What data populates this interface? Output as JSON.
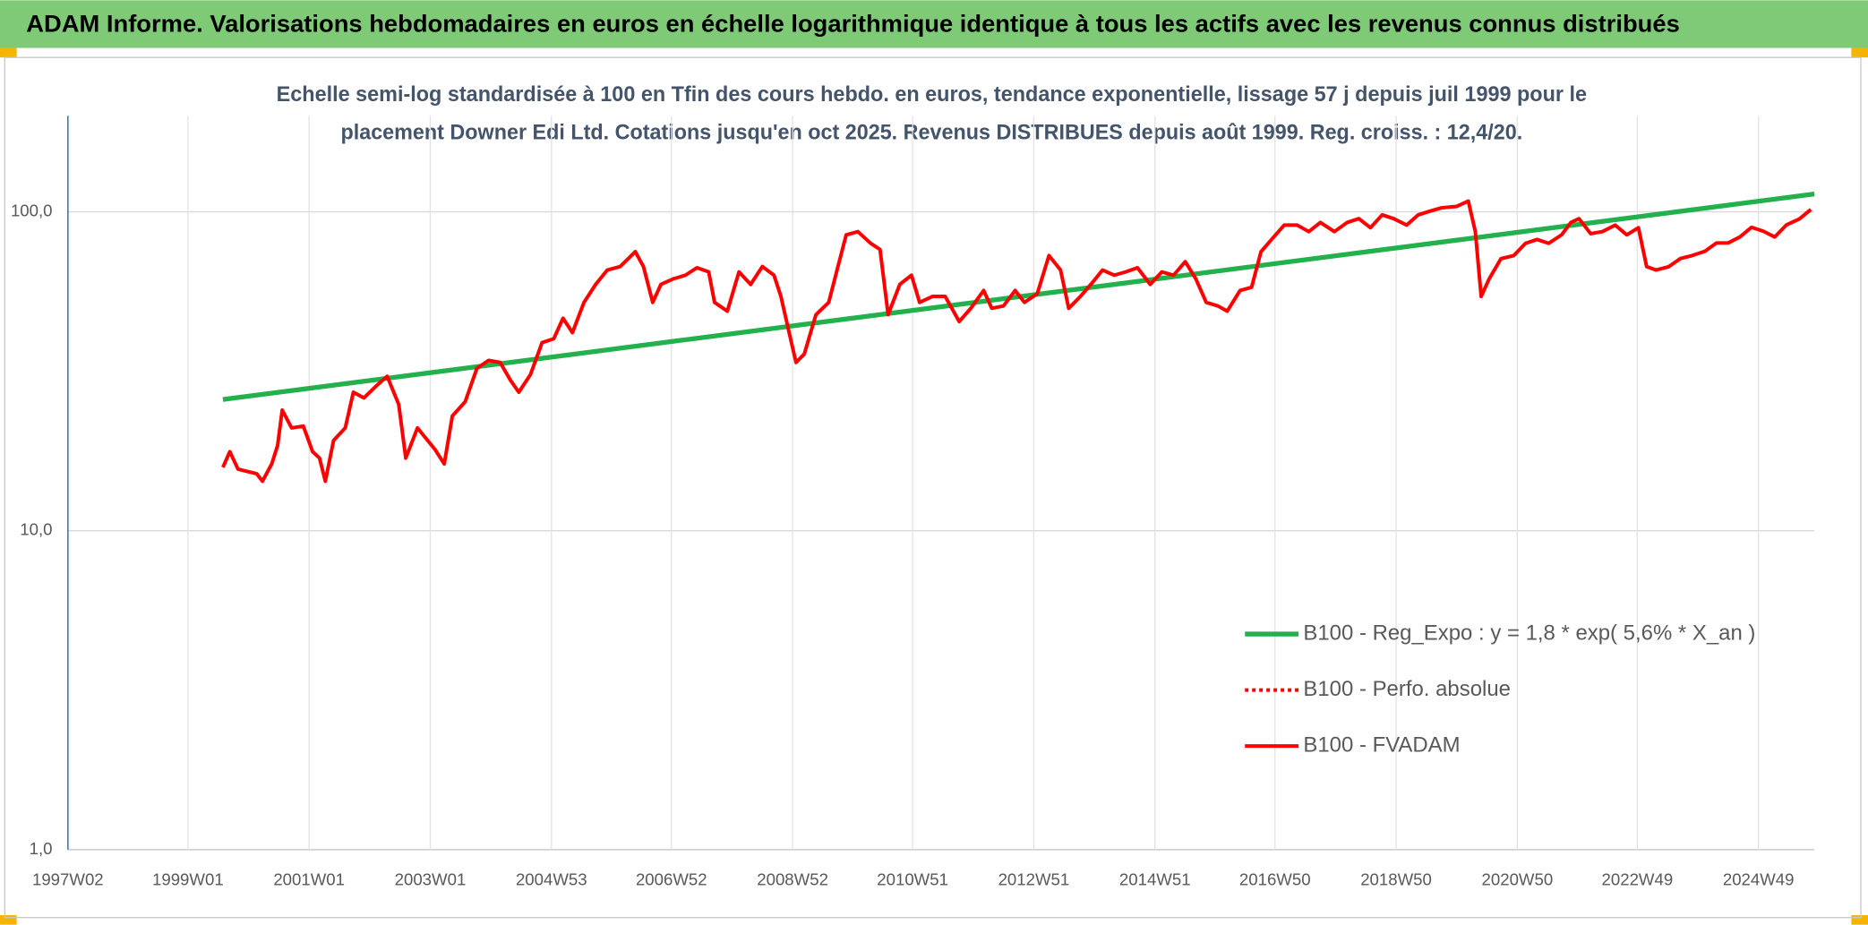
{
  "chart_data": {
    "type": "line",
    "title": "ADAM Informe. Valorisations hebdomadaires en euros en échelle logarithmique identique à tous les actifs avec les revenus connus distribués",
    "subtitle": [
      "Echelle semi-log standardisée à 100 en Tfin des cours hebdo. en euros, tendance exponentielle, lissage 57 j depuis juil 1999 pour le",
      "placement Downer Edi Ltd. Cotations jusqu'en oct 2025. Revenus DISTRIBUES depuis août 1999. Reg. croiss. : 12,4/20."
    ],
    "log_scale": true,
    "grid": true,
    "xlim": [
      "1997W02",
      "2025W45"
    ],
    "xticks": [
      "1997W02",
      "1999W01",
      "2001W01",
      "2003W01",
      "2004W53",
      "2006W52",
      "2008W52",
      "2010W51",
      "2012W51",
      "2014W51",
      "2016W50",
      "2018W50",
      "2020W50",
      "2022W49",
      "2024W49"
    ],
    "ylim": [
      1,
      200
    ],
    "yticks": [
      {
        "value": 1,
        "label": "1,0"
      },
      {
        "value": 10,
        "label": "10,0"
      },
      {
        "value": 100,
        "label": "100,0"
      }
    ],
    "series": [
      {
        "name": "B100 - Reg_Expo : y = 1,8 * exp( 5,6% *  X_an )",
        "color": "#22b14c",
        "width": 4,
        "dash": "solid",
        "x": [
          "1999W31",
          "2025W45"
        ],
        "values": [
          25.8,
          113.8
        ]
      },
      {
        "name": "B100 - Perfo. absolue",
        "color": "#ff0000",
        "width": 3,
        "dash": "dotted",
        "x": [],
        "values": []
      },
      {
        "name": "B100 - FVADAM",
        "color": "#ff0000",
        "width": 3,
        "dash": "solid",
        "x": [
          "1999W31",
          "1999W37",
          "1999W44",
          "2000W08",
          "2000W13",
          "2000W21",
          "2000W26",
          "2000W30",
          "2000W38",
          "2000W48",
          "2001W04",
          "2001W10",
          "2001W15",
          "2001W22",
          "2001W32",
          "2001W39",
          "2001W48",
          "2002W06",
          "2002W16",
          "2002W26",
          "2002W32",
          "2002W42",
          "2003W05",
          "2003W13",
          "2003W20",
          "2003W31",
          "2003W41",
          "2003W51",
          "2004W09",
          "2004W18",
          "2004W25",
          "2004W35",
          "2004W45",
          "2005W03",
          "2005W11",
          "2005W19",
          "2005W29",
          "2005W39",
          "2005W49",
          "2006W08",
          "2006W21",
          "2006W28",
          "2006W36",
          "2006W43",
          "2007W02",
          "2007W12",
          "2007W22",
          "2007W32",
          "2007W37",
          "2007W48",
          "2008W06",
          "2008W16",
          "2008W26",
          "2008W36",
          "2008W42",
          "2008W49",
          "2009W03",
          "2009W10",
          "2009W20",
          "2009W31",
          "2009W39",
          "2009W46",
          "2010W04",
          "2010W15",
          "2010W23",
          "2010W30",
          "2010W40",
          "2010W50",
          "2011W05",
          "2011W16",
          "2011W27",
          "2011W39",
          "2011W49",
          "2012W08",
          "2012W15",
          "2012W25",
          "2012W35",
          "2012W43",
          "2013W02",
          "2013W12",
          "2013W22",
          "2013W29",
          "2013W39",
          "2013W48",
          "2014W06",
          "2014W16",
          "2014W26",
          "2014W36",
          "2014W47",
          "2015W05",
          "2015W15",
          "2015W25",
          "2015W34",
          "2015W43",
          "2016W01",
          "2016W09",
          "2016W20",
          "2016W30",
          "2016W38",
          "2016W48",
          "2017W06",
          "2017W17",
          "2017W27",
          "2017W37",
          "2017W49",
          "2018W08",
          "2018W18",
          "2018W28",
          "2018W38",
          "2018W48",
          "2019W07",
          "2019W17",
          "2019W27",
          "2019W37",
          "2019W50",
          "2020W08",
          "2020W14",
          "2020W19",
          "2020W26",
          "2020W36",
          "2020W47",
          "2021W05",
          "2021W15",
          "2021W25",
          "2021W36",
          "2021W44",
          "2021W51",
          "2022W09",
          "2022W19",
          "2022W30",
          "2022W40",
          "2022W50",
          "2023W05",
          "2023W13",
          "2023W24",
          "2023W34",
          "2023W44",
          "2024W03",
          "2024W13",
          "2024W23",
          "2024W33",
          "2024W43",
          "2025W01",
          "2025W11",
          "2025W21",
          "2025W32",
          "2025W42"
        ],
        "values": [
          15.8,
          17.7,
          15.6,
          15.1,
          14.3,
          16.2,
          18.5,
          23.9,
          21.0,
          21.3,
          17.7,
          16.9,
          14.3,
          19.2,
          21.0,
          27.2,
          26.1,
          28.3,
          30.5,
          24.9,
          16.9,
          21.0,
          18.0,
          16.2,
          22.9,
          25.4,
          32.3,
          34.2,
          33.7,
          29.6,
          27.2,
          30.9,
          38.9,
          40.0,
          46.4,
          41.8,
          52.0,
          59.2,
          65.7,
          67.4,
          75.0,
          67.4,
          52.0,
          59.2,
          61.7,
          63.3,
          66.8,
          64.8,
          52.0,
          48.8,
          64.8,
          59.2,
          67.4,
          63.3,
          54.3,
          41.8,
          33.7,
          35.8,
          47.6,
          52.0,
          67.4,
          84.7,
          86.7,
          79.7,
          76.2,
          47.6,
          59.2,
          63.3,
          52.0,
          54.3,
          54.3,
          45.3,
          49.8,
          56.7,
          49.8,
          50.7,
          56.7,
          52.0,
          55.4,
          72.9,
          65.7,
          49.8,
          54.3,
          59.2,
          65.7,
          63.3,
          64.8,
          66.8,
          59.2,
          64.8,
          63.3,
          69.8,
          61.7,
          52.0,
          50.7,
          48.8,
          56.7,
          58.0,
          75.0,
          82.6,
          90.9,
          90.9,
          86.7,
          92.6,
          86.7,
          92.6,
          95.2,
          89.2,
          97.9,
          95.2,
          90.9,
          97.9,
          100.5,
          103,
          104,
          108,
          86.7,
          54.3,
          61.7,
          71.3,
          72.9,
          79.7,
          81.9,
          79.7,
          84.7,
          92.6,
          95.2,
          85.4,
          86.7,
          90.9,
          84.7,
          89.2,
          67.3,
          65.7,
          67.3,
          71.4,
          72.9,
          75.2,
          79.9,
          79.9,
          83.4,
          89.4,
          87.0,
          83.4,
          91.0,
          95.0,
          101.7
        ]
      }
    ]
  }
}
